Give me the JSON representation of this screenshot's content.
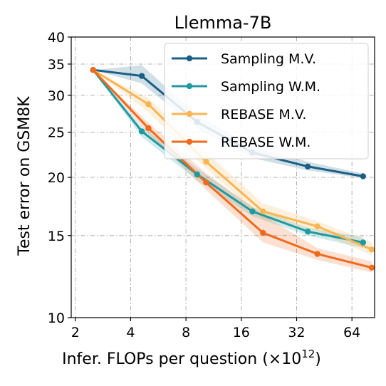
{
  "chart_data": {
    "type": "line",
    "title": "Llemma-7B",
    "xlabel": "Infer. FLOPs per question (×10",
    "xlabel_sup": "12",
    "xlabel_end": ")",
    "ylabel": "Test error on GSM8K",
    "x_scale": "log2",
    "y_scale": "log",
    "xlim": [
      1.9,
      85
    ],
    "ylim": [
      10,
      40
    ],
    "x_ticks": [
      2,
      4,
      8,
      16,
      32,
      64
    ],
    "x_tick_labels": [
      "2",
      "4",
      "8",
      "16",
      "32",
      "64"
    ],
    "y_ticks": [
      10,
      15,
      20,
      25,
      30,
      35,
      40
    ],
    "y_tick_labels": [
      "10",
      "15",
      "20",
      "25",
      "30",
      "35",
      "40"
    ],
    "grid": true,
    "legend_position": "top-right",
    "series": [
      {
        "name": "Sampling M.V.",
        "color": "#1b5e86",
        "x": [
          2.5,
          4.6,
          9.2,
          18.4,
          36.8,
          73.6
        ],
        "y": [
          34.0,
          33.0,
          26.3,
          22.6,
          21.1,
          20.1
        ],
        "band_lower": [
          34.0,
          31.8,
          25.5,
          22.0,
          20.7,
          19.9
        ],
        "band_upper": [
          34.0,
          34.8,
          27.2,
          23.3,
          21.6,
          20.4
        ]
      },
      {
        "name": "Sampling W.M.",
        "color": "#1f9aa0",
        "x": [
          2.5,
          4.6,
          9.2,
          18.4,
          36.8,
          73.6
        ],
        "y": [
          34.0,
          25.1,
          20.3,
          16.9,
          15.3,
          14.5
        ],
        "band_lower": [
          34.0,
          24.4,
          19.7,
          16.5,
          15.0,
          14.1
        ],
        "band_upper": [
          34.0,
          25.7,
          20.9,
          17.3,
          15.6,
          14.9
        ]
      },
      {
        "name": "REBASE M.V.",
        "color": "#f9b552",
        "x": [
          2.5,
          5.0,
          10.3,
          21.0,
          41.5,
          82.0
        ],
        "y": [
          34.0,
          28.7,
          21.6,
          16.9,
          15.7,
          14.0
        ],
        "band_lower": [
          34.0,
          27.6,
          20.9,
          16.3,
          15.3,
          13.6
        ],
        "band_upper": [
          34.0,
          29.6,
          22.6,
          17.6,
          16.1,
          14.5
        ]
      },
      {
        "name": "REBASE W.M.",
        "color": "#f06a1e",
        "x": [
          2.5,
          5.0,
          10.3,
          21.0,
          41.5,
          82.0
        ],
        "y": [
          34.0,
          25.5,
          19.5,
          15.2,
          13.7,
          12.8
        ],
        "band_lower": [
          34.0,
          24.8,
          18.8,
          14.5,
          13.3,
          12.5
        ],
        "band_upper": [
          34.0,
          26.2,
          20.4,
          16.6,
          14.1,
          13.2
        ]
      }
    ]
  }
}
